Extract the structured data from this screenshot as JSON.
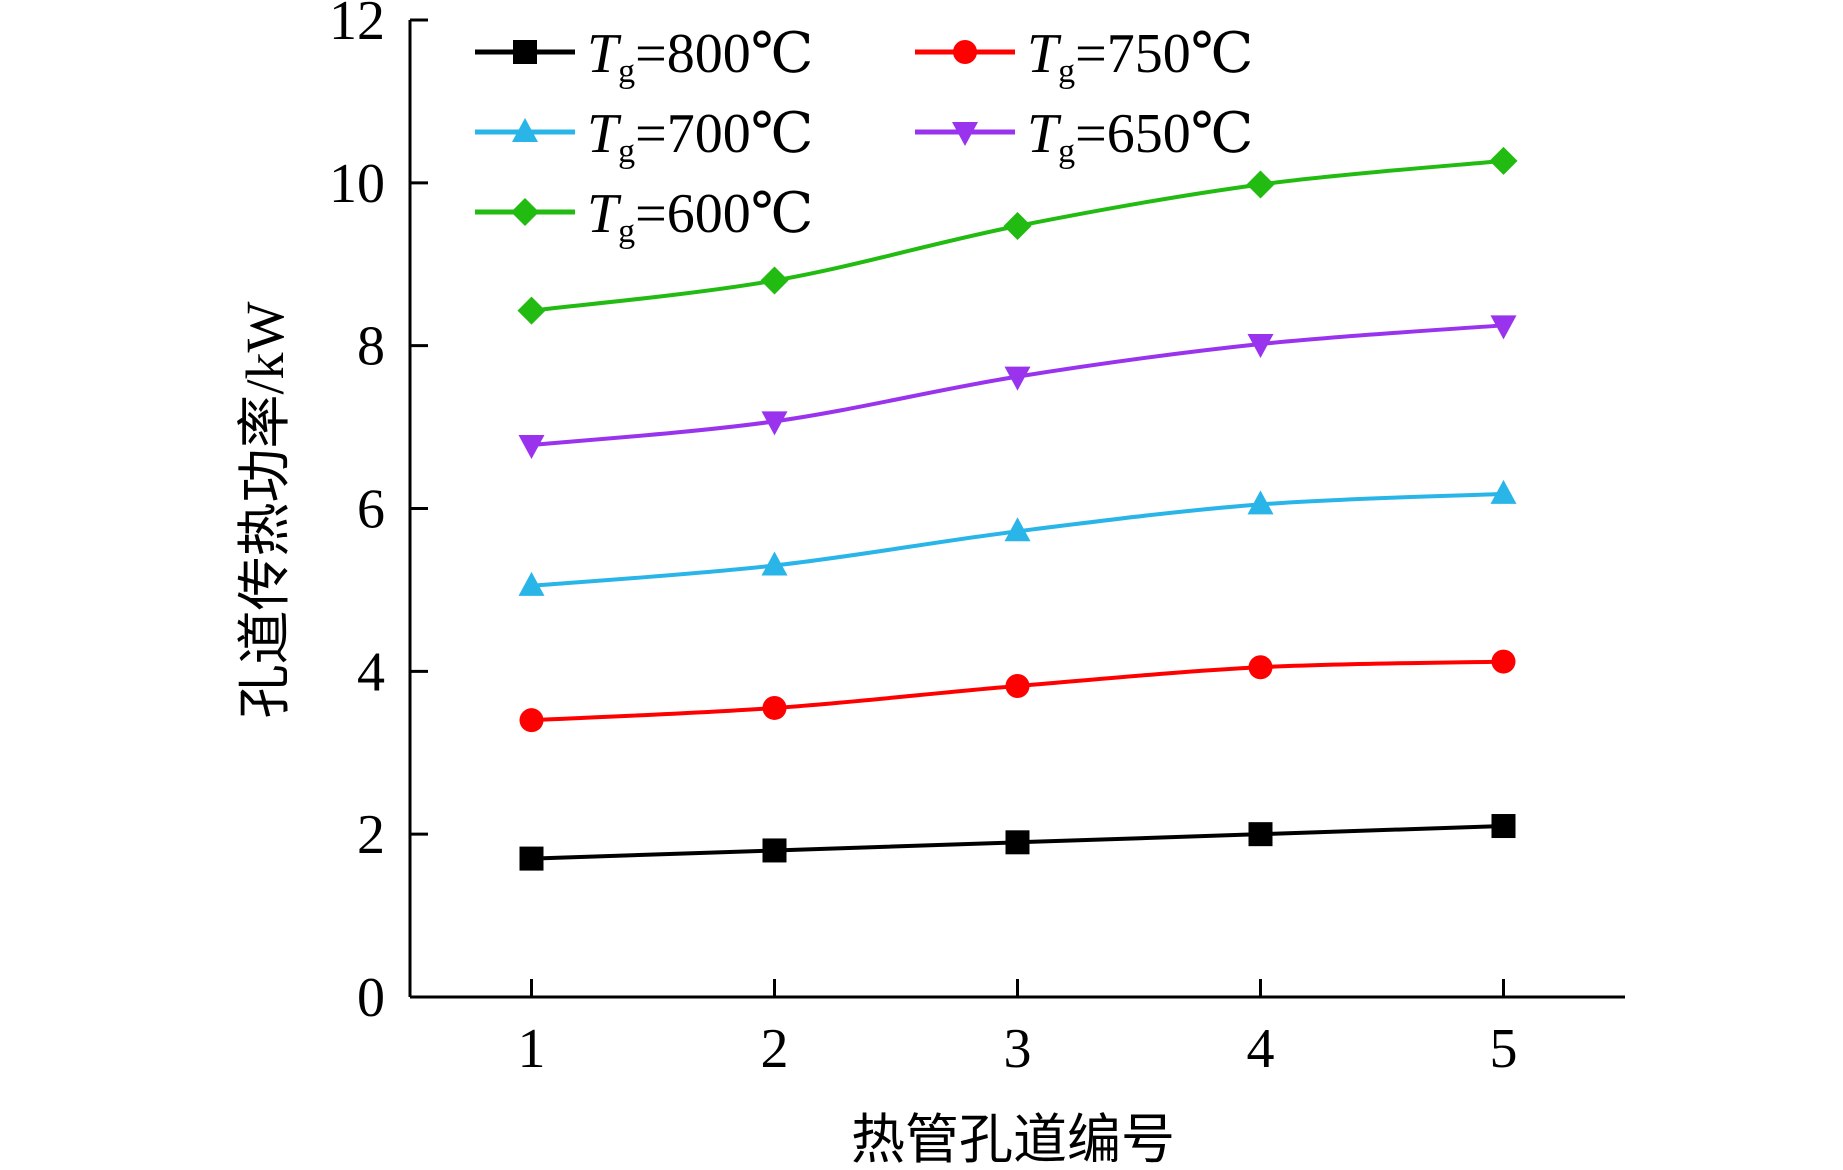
{
  "chart_data": {
    "type": "line",
    "title": "",
    "xlabel": "热管孔道编号",
    "ylabel": "孔道传热功率/kW",
    "x": [
      1,
      2,
      3,
      4,
      5
    ],
    "xticks": [
      "1",
      "2",
      "3",
      "4",
      "5"
    ],
    "yticks": [
      "0",
      "2",
      "4",
      "6",
      "8",
      "10",
      "12"
    ],
    "xlim": [
      0.5,
      5.5
    ],
    "ylim": [
      0,
      12
    ],
    "grid": false,
    "legend_position": "top-left",
    "series": [
      {
        "name": "Tg=800℃",
        "label_symbol": "T",
        "label_sub": "g",
        "label_rest": "=800℃",
        "color": "#000000",
        "marker": "square",
        "values": [
          1.7,
          1.8,
          1.9,
          2.0,
          2.1
        ]
      },
      {
        "name": "Tg=750℃",
        "label_symbol": "T",
        "label_sub": "g",
        "label_rest": "=750℃",
        "color": "#ff0000",
        "marker": "circle",
        "values": [
          3.4,
          3.55,
          3.82,
          4.05,
          4.12
        ]
      },
      {
        "name": "Tg=700℃",
        "label_symbol": "T",
        "label_sub": "g",
        "label_rest": "=700℃",
        "color": "#29b5e8",
        "marker": "triangle-up",
        "values": [
          5.05,
          5.3,
          5.72,
          6.05,
          6.18
        ]
      },
      {
        "name": "Tg=650℃",
        "label_symbol": "T",
        "label_sub": "g",
        "label_rest": "=650℃",
        "color": "#9933ee",
        "marker": "triangle-down",
        "values": [
          6.78,
          7.07,
          7.62,
          8.02,
          8.25
        ]
      },
      {
        "name": "Tg=600℃",
        "label_symbol": "T",
        "label_sub": "g",
        "label_rest": "=600℃",
        "color": "#22bb11",
        "marker": "diamond",
        "values": [
          8.43,
          8.8,
          9.47,
          9.98,
          10.27
        ]
      }
    ]
  }
}
